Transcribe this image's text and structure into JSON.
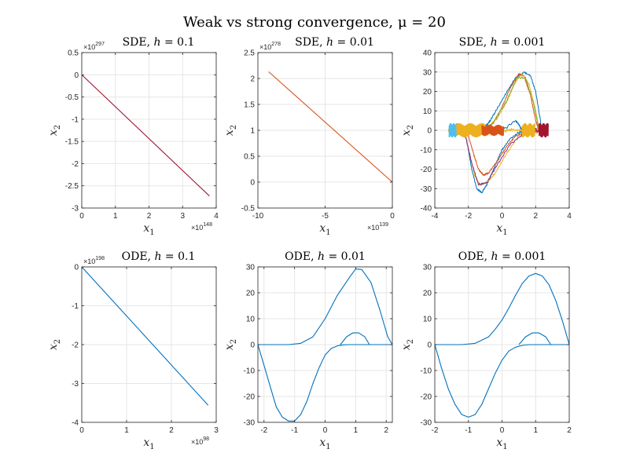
{
  "figure": {
    "title": "Weak vs strong convergence, μ = 20",
    "colors": {
      "blue": "#0072BD",
      "orange": "#D95319",
      "yellow": "#EDB120",
      "purple": "#7E2F8E",
      "green": "#77AC30",
      "cyan": "#4DBEEE",
      "red": "#A2142F",
      "grid": "#e6e6e6",
      "axis": "#262626"
    }
  },
  "chart_data": [
    {
      "type": "line",
      "title": "SDE, h = 0.1",
      "xlabel": "x1",
      "ylabel": "x2",
      "xlim": [
        0,
        4
      ],
      "ylim": [
        -3,
        0.5
      ],
      "xticks": [
        0,
        1,
        2,
        3,
        4
      ],
      "xticklabels": [
        "0",
        "1",
        "2",
        "3",
        "4"
      ],
      "yticks": [
        -3,
        -2.5,
        -2,
        -1.5,
        -1,
        -0.5,
        0,
        0.5
      ],
      "yticklabels": [
        "-3",
        "-2.5",
        "-2",
        "-1.5",
        "-1",
        "-0.5",
        "0",
        "0.5"
      ],
      "x_exponent": "10^148",
      "y_exponent": "10^297",
      "grid": true,
      "series": [
        {
          "color": "#A2142F",
          "x": [
            0,
            3.8
          ],
          "y": [
            0,
            -2.73
          ]
        }
      ]
    },
    {
      "type": "line",
      "title": "SDE, h = 0.01",
      "xlabel": "x1",
      "ylabel": "x2",
      "xlim": [
        -10,
        0
      ],
      "ylim": [
        -0.5,
        2.5
      ],
      "xticks": [
        -10,
        -5,
        0
      ],
      "xticklabels": [
        "-10",
        "-5",
        "0"
      ],
      "yticks": [
        -0.5,
        0,
        0.5,
        1,
        1.5,
        2,
        2.5
      ],
      "yticklabels": [
        "-0.5",
        "0",
        "0.5",
        "1",
        "1.5",
        "2",
        "2.5"
      ],
      "x_exponent": "10^139",
      "y_exponent": "10^278",
      "grid": true,
      "series": [
        {
          "color": "#D95319",
          "x": [
            -9.2,
            0
          ],
          "y": [
            2.13,
            0
          ]
        }
      ]
    },
    {
      "type": "line",
      "title": "SDE, h = 0.001",
      "xlabel": "x1",
      "ylabel": "x2",
      "xlim": [
        -4,
        4
      ],
      "ylim": [
        -40,
        40
      ],
      "xticks": [
        -4,
        -2,
        0,
        2,
        4
      ],
      "xticklabels": [
        "-4",
        "-2",
        "0",
        "2",
        "4"
      ],
      "yticks": [
        -40,
        -30,
        -20,
        -10,
        0,
        10,
        20,
        30,
        40
      ],
      "yticklabels": [
        "-40",
        "-30",
        "-20",
        "-10",
        "0",
        "10",
        "20",
        "30",
        "40"
      ],
      "grid": true,
      "noisy": true,
      "series": [
        {
          "color": "#0072BD",
          "x": [
            -3.1,
            -2.6,
            -2,
            -1.2,
            0,
            0.8,
            1,
            1.2,
            1.6,
            2.2,
            2.6
          ],
          "y": [
            0,
            0,
            0,
            0,
            0,
            5,
            3,
            0,
            -1,
            0,
            0
          ]
        },
        {
          "color": "#0072BD",
          "x": [
            2.4,
            2,
            1.7,
            1.3,
            0.8,
            0.3,
            -0.3,
            -0.7,
            -1,
            -1.3,
            -1.6,
            -1.8,
            -2.1
          ],
          "y": [
            -1,
            20,
            28,
            30,
            27,
            20,
            11,
            5,
            2,
            0.5,
            0,
            0,
            0
          ]
        },
        {
          "color": "#0072BD",
          "x": [
            2.1,
            1.2,
            0.5,
            0,
            -0.5,
            -0.9,
            -1.2,
            -1.5,
            -1.8,
            -2.1,
            -2.4
          ],
          "y": [
            0,
            0,
            -4,
            -10,
            -20,
            -28,
            -32,
            -30,
            -20,
            -5,
            0
          ]
        },
        {
          "color": "#D95319",
          "x": [
            2.3,
            1.5,
            0.8,
            0.3,
            -0.3,
            -0.8,
            -1.1,
            -1.4,
            -1.7,
            -2,
            -2.3
          ],
          "y": [
            0,
            -1,
            -3,
            -8,
            -16,
            -22,
            -23,
            -20,
            -12,
            -3,
            0
          ]
        },
        {
          "color": "#D95319",
          "x": [
            -2.1,
            -1.5,
            -1,
            -0.5,
            0,
            0.5,
            1,
            1.3,
            1.7,
            2,
            2.2
          ],
          "y": [
            0,
            0,
            1,
            4,
            12,
            22,
            29,
            28,
            18,
            5,
            0
          ]
        },
        {
          "color": "#EDB120",
          "x": [
            -3.2,
            -2.6,
            -2,
            -1.4,
            -0.8,
            -0.2,
            0.4,
            1.2,
            1.8,
            2.4
          ],
          "y": [
            0,
            0,
            0,
            0,
            0,
            0,
            0,
            0,
            0,
            0
          ]
        },
        {
          "color": "#EDB120",
          "x": [
            2.1,
            1.5,
            0.8,
            0.2,
            -0.4,
            -0.9,
            -1.3,
            -1.6,
            -1.9,
            -2.2
          ],
          "y": [
            0,
            -1,
            -5,
            -13,
            -22,
            -27,
            -28,
            -24,
            -13,
            -2
          ]
        },
        {
          "color": "#EDB120",
          "x": [
            -1.9,
            -1.3,
            -0.8,
            -0.3,
            0.3,
            0.8,
            1.2,
            1.6,
            2,
            2.2
          ],
          "y": [
            0,
            0,
            2,
            6,
            15,
            25,
            29,
            24,
            10,
            1
          ]
        },
        {
          "color": "#7E2F8E",
          "x": [
            2.2,
            1.4,
            0.5,
            -0.3,
            -0.9,
            -1.4,
            -1.8,
            -2.2
          ],
          "y": [
            0,
            -1,
            -7,
            -18,
            -27,
            -28,
            -17,
            -2
          ]
        },
        {
          "color": "#77AC30",
          "x": [
            -2.2,
            -1.4,
            -0.6,
            0.2,
            0.9,
            1.4,
            1.9,
            2.2
          ],
          "y": [
            0,
            0,
            3,
            14,
            27,
            27,
            13,
            0
          ]
        },
        {
          "color": "#4DBEEE",
          "x": [
            -3.1,
            -2.6,
            -2.1,
            -1.6,
            -1.1
          ],
          "y": [
            0,
            0,
            0,
            0,
            0
          ]
        },
        {
          "color": "#A2142F",
          "x": [
            1.9,
            2.2,
            2.5,
            2.75
          ],
          "y": [
            0,
            0,
            0,
            0
          ]
        }
      ]
    },
    {
      "type": "line",
      "title": "ODE, h = 0.1",
      "xlabel": "x1",
      "ylabel": "x2",
      "xlim": [
        0,
        3
      ],
      "ylim": [
        -4,
        0
      ],
      "xticks": [
        0,
        1,
        2,
        3
      ],
      "xticklabels": [
        "0",
        "1",
        "2",
        "3"
      ],
      "yticks": [
        -4,
        -3,
        -2,
        -1,
        0
      ],
      "yticklabels": [
        "-4",
        "-3",
        "-2",
        "-1",
        "0"
      ],
      "x_exponent": "10^98",
      "y_exponent": "10^198",
      "grid": true,
      "series": [
        {
          "color": "#0072BD",
          "x": [
            0,
            2.82
          ],
          "y": [
            0,
            -3.56
          ]
        }
      ]
    },
    {
      "type": "line",
      "title": "ODE, h = 0.01",
      "xlabel": "x1",
      "ylabel": "x2",
      "xlim": [
        -2.2,
        2.2
      ],
      "ylim": [
        -30,
        30
      ],
      "xticks": [
        -2,
        -1,
        0,
        1,
        2
      ],
      "xticklabels": [
        "-2",
        "-1",
        "0",
        "1",
        "2"
      ],
      "yticks": [
        -30,
        -20,
        -10,
        0,
        10,
        20,
        30
      ],
      "yticklabels": [
        "-30",
        "-20",
        "-10",
        "0",
        "10",
        "20",
        "30"
      ],
      "grid": true,
      "series": [
        {
          "color": "#0072BD",
          "x": [
            0.5,
            0.7,
            0.9,
            1.1,
            1.3,
            1.45
          ],
          "y": [
            0,
            3,
            4.5,
            4.5,
            3,
            0
          ]
        },
        {
          "color": "#0072BD",
          "x": [
            1.45,
            2.2
          ],
          "y": [
            0,
            0
          ]
        },
        {
          "color": "#0072BD",
          "x": [
            -2.2,
            -1.6,
            -1.2,
            -0.8,
            -0.4,
            0,
            0.4,
            0.8,
            1.0,
            1.2,
            1.5,
            1.8,
            2.05,
            2.2
          ],
          "y": [
            0,
            0,
            0,
            0.5,
            3,
            10,
            19,
            26,
            29.2,
            29,
            24,
            13,
            3,
            0
          ]
        },
        {
          "color": "#0072BD",
          "x": [
            -2.2,
            -2.0,
            -1.8,
            -1.6,
            -1.4,
            -1.2,
            -1.0,
            -0.8,
            -0.6,
            -0.4,
            -0.2,
            0,
            0.2,
            0.4,
            0.6,
            0.8,
            1.0,
            1.5,
            2.2
          ],
          "y": [
            0,
            -8,
            -16,
            -24,
            -28,
            -29.5,
            -29.5,
            -27,
            -22,
            -15,
            -9,
            -4,
            -1.5,
            -0.5,
            -0.1,
            0,
            0,
            0,
            0
          ]
        }
      ]
    },
    {
      "type": "line",
      "title": "ODE, h = 0.001",
      "xlabel": "x1",
      "ylabel": "x2",
      "xlim": [
        -2,
        2
      ],
      "ylim": [
        -30,
        30
      ],
      "xticks": [
        -2,
        -1,
        0,
        1,
        2
      ],
      "xticklabels": [
        "-2",
        "-1",
        "0",
        "1",
        "2"
      ],
      "yticks": [
        -30,
        -20,
        -10,
        0,
        10,
        20,
        30
      ],
      "yticklabels": [
        "-30",
        "-20",
        "-10",
        "0",
        "10",
        "20",
        "30"
      ],
      "grid": true,
      "series": [
        {
          "color": "#0072BD",
          "x": [
            0.5,
            0.7,
            0.9,
            1.1,
            1.3,
            1.45
          ],
          "y": [
            0,
            3,
            4.5,
            4.5,
            3,
            0
          ]
        },
        {
          "color": "#0072BD",
          "x": [
            1.45,
            2.0
          ],
          "y": [
            0,
            0
          ]
        },
        {
          "color": "#0072BD",
          "x": [
            -2,
            -1.6,
            -1.2,
            -0.8,
            -0.4,
            -0.2,
            0,
            0.2,
            0.4,
            0.6,
            0.8,
            1.0,
            1.2,
            1.4,
            1.6,
            1.8,
            2.0
          ],
          "y": [
            0,
            0,
            0,
            0.5,
            3,
            6,
            9.5,
            14,
            19,
            23.5,
            26.5,
            27.5,
            26.5,
            23,
            17,
            9,
            0
          ]
        },
        {
          "color": "#0072BD",
          "x": [
            -2,
            -1.8,
            -1.6,
            -1.4,
            -1.2,
            -1.0,
            -0.8,
            -0.6,
            -0.4,
            -0.2,
            0,
            0.2,
            0.4,
            0.6,
            0.8,
            1.0,
            1.5,
            2.0
          ],
          "y": [
            0,
            -9,
            -17,
            -23,
            -27,
            -28,
            -27,
            -23,
            -17,
            -11,
            -6,
            -2.5,
            -1,
            -0.3,
            0,
            0,
            0,
            0
          ]
        }
      ]
    }
  ]
}
